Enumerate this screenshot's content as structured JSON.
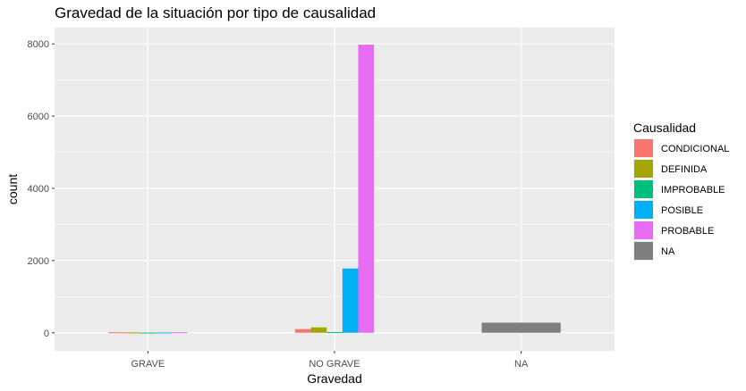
{
  "chart_data": {
    "type": "bar",
    "title": "Gravedad de la situación por tipo de causalidad",
    "xlabel": "Gravedad",
    "ylabel": "count",
    "categories": [
      "GRAVE",
      "NO GRAVE",
      "NA"
    ],
    "y_ticks": [
      "0",
      "2000",
      "4000",
      "6000",
      "8000"
    ],
    "ylim": [
      -500,
      8450
    ],
    "grid": true,
    "legend_position": "right",
    "legend_title": "Causalidad",
    "series": [
      {
        "name": "CONDICIONAL",
        "color": "#F8766D",
        "values": [
          15,
          100,
          null
        ]
      },
      {
        "name": "DEFINIDA",
        "color": "#A3A500",
        "values": [
          10,
          150,
          null
        ]
      },
      {
        "name": "IMPROBABLE",
        "color": "#00BF7D",
        "values": [
          5,
          20,
          null
        ]
      },
      {
        "name": "POSIBLE",
        "color": "#00B0F6",
        "values": [
          10,
          1780,
          null
        ]
      },
      {
        "name": "PROBABLE",
        "color": "#E76BF3",
        "values": [
          15,
          7980,
          null
        ]
      },
      {
        "name": "NA",
        "color": "#7F7F7F",
        "values": [
          null,
          null,
          280
        ]
      }
    ]
  }
}
